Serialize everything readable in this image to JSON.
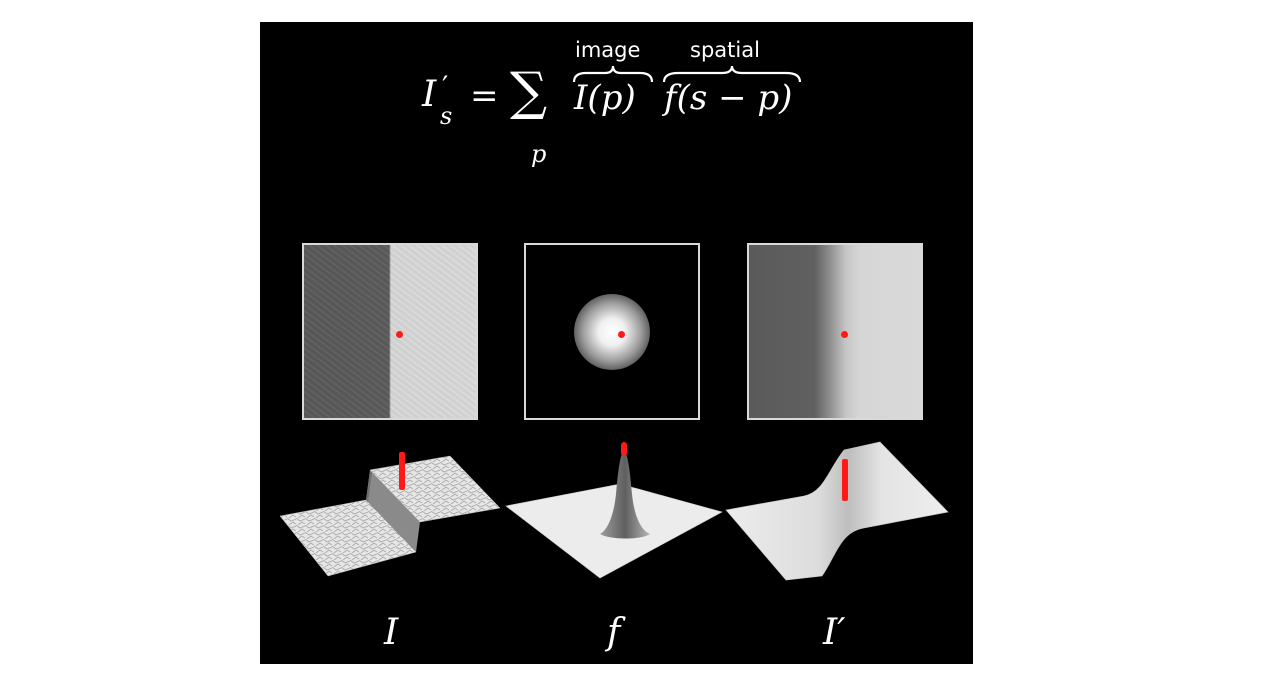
{
  "formula": {
    "lhs": "I",
    "lhs_prime": "′",
    "lhs_sub": "s",
    "equals": "=",
    "sum": "∑",
    "sum_index": "p",
    "term1": "I(p)",
    "term2": "f(s − p)",
    "brace1_label": "image",
    "brace2_label": "spatial"
  },
  "labels": {
    "input": "I",
    "kernel": "f",
    "output": "I′"
  },
  "colors": {
    "background": "#000000",
    "marker": "#ff1a1a",
    "panel_border": "#d9d9d9"
  }
}
